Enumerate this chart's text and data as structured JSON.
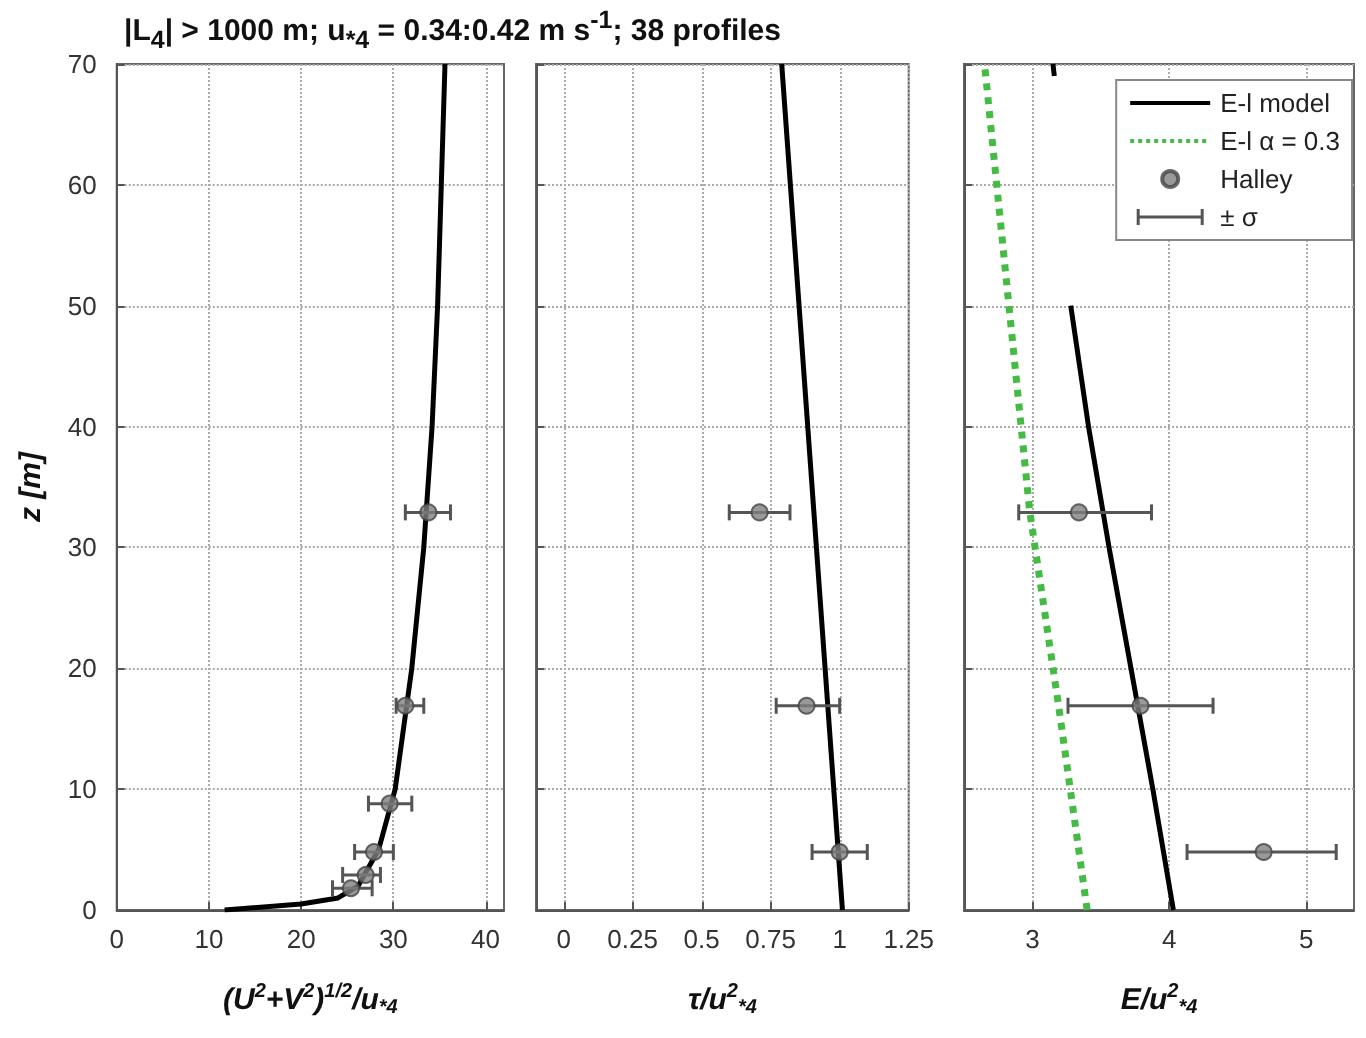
{
  "chart_data": [
    {
      "type": "line",
      "title": "|L$_{4}$| > 1000 m; u$_{*4}$ = 0.34:0.42 m s$^{-1}$; 38 profiles",
      "xlabel": "(U$^{2}$+V$^{2}$)$^{1/2}$/u$_{*4}$",
      "ylabel": "z [m]",
      "xlim": [
        0,
        42
      ],
      "xticks": [
        0,
        10,
        20,
        30,
        40
      ],
      "ylim": [
        0,
        70
      ],
      "yticks": [
        0,
        10,
        20,
        30,
        40,
        50,
        60,
        70
      ],
      "grid": true,
      "series": [
        {
          "type": "line",
          "color": "#000000",
          "marker": "none",
          "line_style": "solid",
          "x": [
            11.7,
            20,
            24,
            26.2,
            28.4,
            30.2,
            32,
            33.3,
            34.2,
            34.8,
            35.2,
            35.6
          ],
          "values": [
            0,
            0.5,
            1,
            2,
            5,
            10,
            20,
            30,
            40,
            50,
            60,
            70
          ]
        },
        {
          "type": "scatter",
          "color": "#808080",
          "marker": "circle",
          "x": [
            25.4,
            27.0,
            27.9,
            29.6,
            31.3,
            33.8
          ],
          "values": [
            1.8,
            2.9,
            4.8,
            8.8,
            16.9,
            32.9
          ],
          "xerrors": [
            [
              23.4,
              27.7
            ],
            [
              24.5,
              28.6
            ],
            [
              25.8,
              30.0
            ],
            [
              27.3,
              32.0
            ],
            [
              30.3,
              33.3
            ],
            [
              31.3,
              36.2
            ]
          ]
        }
      ]
    },
    {
      "type": "line",
      "xlabel": "τ/u$^{2}$$_{*4}$",
      "xlim": [
        -0.1,
        1.25
      ],
      "xticks": [
        0,
        0.25,
        0.5,
        0.75,
        1,
        1.25
      ],
      "ylim": [
        0,
        70
      ],
      "yticks": [
        0,
        10,
        20,
        30,
        40,
        50,
        60,
        70
      ],
      "grid": true,
      "tick_labels": "x",
      "series": [
        {
          "type": "line",
          "color": "#000000",
          "marker": "none",
          "line_style": "solid",
          "x": [
            1.01,
            0.79
          ],
          "values": [
            0,
            70
          ]
        },
        {
          "type": "scatter",
          "color": "#808080",
          "marker": "circle",
          "x": [
            1.0,
            0.88,
            0.71
          ],
          "values": [
            4.8,
            16.9,
            32.9
          ],
          "xerrors": [
            [
              0.9,
              1.1
            ],
            [
              0.77,
              1.0
            ],
            [
              0.6,
              0.82
            ]
          ]
        }
      ]
    },
    {
      "type": "line",
      "xlabel": "E/u$^{2}$$_{*4}$",
      "xlim": [
        2.5,
        5.35
      ],
      "xticks": [
        3,
        4,
        5
      ],
      "ylim": [
        0,
        70
      ],
      "yticks": [
        0,
        10,
        20,
        30,
        40,
        50,
        60,
        70
      ],
      "grid": true,
      "tick_labels": "x",
      "legend": "top right",
      "annotations": [
        "± σ"
      ],
      "series": [
        {
          "name": "E-l model",
          "type": "line",
          "color": "#000000",
          "marker": "none",
          "line_style": "solid",
          "x": [
            4.03,
            3.88,
            3.72,
            3.56,
            3.41,
            3.28,
            null,
            3.16,
            3.15
          ],
          "values": [
            0,
            10,
            20,
            30,
            40,
            50,
            null,
            69,
            70
          ]
        },
        {
          "name": "E-l α = 0.3",
          "type": "line",
          "color": "#44bb44",
          "marker": "none",
          "line_style": "dotted",
          "x": [
            3.4,
            3.19,
            2.98,
            2.65
          ],
          "values": [
            0,
            17,
            33,
            70
          ]
        },
        {
          "name": "Halley",
          "type": "scatter",
          "color": "#808080",
          "marker": "circle",
          "x": [
            4.69,
            3.79,
            3.34
          ],
          "values": [
            4.8,
            16.9,
            32.9
          ],
          "xerrors": [
            [
              4.13,
              5.22
            ],
            [
              3.26,
              4.32
            ],
            [
              2.9,
              3.87
            ]
          ]
        }
      ]
    }
  ]
}
